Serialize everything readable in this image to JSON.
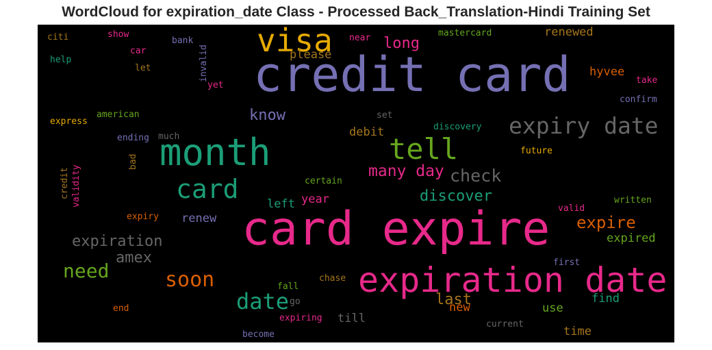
{
  "title": "WordCloud for expiration_date Class - Processed Back_Translation-Hindi Training Set",
  "words": [
    {
      "text": "credit card",
      "color": "#7570b3"
    },
    {
      "text": "card expire",
      "color": "#e7298a"
    },
    {
      "text": "expiration date",
      "color": "#e7298a"
    },
    {
      "text": "month",
      "color": "#1b9e77"
    },
    {
      "text": "visa",
      "color": "#e6ab02"
    },
    {
      "text": "tell",
      "color": "#66a61e"
    },
    {
      "text": "card",
      "color": "#1b9e77"
    },
    {
      "text": "expiry date",
      "color": "#666666"
    },
    {
      "text": "date",
      "color": "#1b9e77"
    },
    {
      "text": "soon",
      "color": "#d95f02"
    },
    {
      "text": "need",
      "color": "#66a61e"
    },
    {
      "text": "expire",
      "color": "#d95f02"
    },
    {
      "text": "check",
      "color": "#666666"
    },
    {
      "text": "many day",
      "color": "#e7298a"
    },
    {
      "text": "discover",
      "color": "#1b9e77"
    },
    {
      "text": "expiration",
      "color": "#666666"
    },
    {
      "text": "amex",
      "color": "#666666"
    },
    {
      "text": "know",
      "color": "#7570b3"
    },
    {
      "text": "long",
      "color": "#e7298a"
    },
    {
      "text": "last",
      "color": "#a6761d"
    },
    {
      "text": "please",
      "color": "#a6761d"
    },
    {
      "text": "renewed",
      "color": "#a6761d"
    },
    {
      "text": "hyvee",
      "color": "#d95f02"
    },
    {
      "text": "expired",
      "color": "#66a61e"
    },
    {
      "text": "find",
      "color": "#1b9e77"
    },
    {
      "text": "debit",
      "color": "#a6761d"
    },
    {
      "text": "year",
      "color": "#e7298a"
    },
    {
      "text": "left",
      "color": "#1b9e77"
    },
    {
      "text": "renew",
      "color": "#7570b3"
    },
    {
      "text": "till",
      "color": "#666666"
    },
    {
      "text": "use",
      "color": "#66a61e"
    },
    {
      "text": "time",
      "color": "#a6761d"
    },
    {
      "text": "new",
      "color": "#d95f02"
    },
    {
      "text": "mastercard",
      "color": "#66a61e"
    },
    {
      "text": "near",
      "color": "#e7298a"
    },
    {
      "text": "citi",
      "color": "#a6761d"
    },
    {
      "text": "show",
      "color": "#e7298a"
    },
    {
      "text": "bank",
      "color": "#7570b3"
    },
    {
      "text": "car",
      "color": "#e7298a"
    },
    {
      "text": "help",
      "color": "#1b9e77"
    },
    {
      "text": "let",
      "color": "#a6761d"
    },
    {
      "text": "yet",
      "color": "#e7298a"
    },
    {
      "text": "take",
      "color": "#e7298a"
    },
    {
      "text": "confirm",
      "color": "#7570b3"
    },
    {
      "text": "american",
      "color": "#66a61e"
    },
    {
      "text": "express",
      "color": "#e6ab02"
    },
    {
      "text": "set",
      "color": "#666666"
    },
    {
      "text": "discovery",
      "color": "#1b9e77"
    },
    {
      "text": "ending",
      "color": "#7570b3"
    },
    {
      "text": "much",
      "color": "#666666"
    },
    {
      "text": "future",
      "color": "#e6ab02"
    },
    {
      "text": "certain",
      "color": "#66a61e"
    },
    {
      "text": "written",
      "color": "#66a61e"
    },
    {
      "text": "valid",
      "color": "#e7298a"
    },
    {
      "text": "expiry",
      "color": "#d95f02"
    },
    {
      "text": "first",
      "color": "#7570b3"
    },
    {
      "text": "chase",
      "color": "#a6761d"
    },
    {
      "text": "fall",
      "color": "#66a61e"
    },
    {
      "text": "go",
      "color": "#666666"
    },
    {
      "text": "end",
      "color": "#d95f02"
    },
    {
      "text": "expiring",
      "color": "#e7298a"
    },
    {
      "text": "current",
      "color": "#666666"
    },
    {
      "text": "become",
      "color": "#7570b3"
    },
    {
      "text": "invalid",
      "color": "#7570b3"
    },
    {
      "text": "bad",
      "color": "#a6761d"
    },
    {
      "text": "credit",
      "color": "#a6761d"
    },
    {
      "text": "validity",
      "color": "#e7298a"
    }
  ]
}
